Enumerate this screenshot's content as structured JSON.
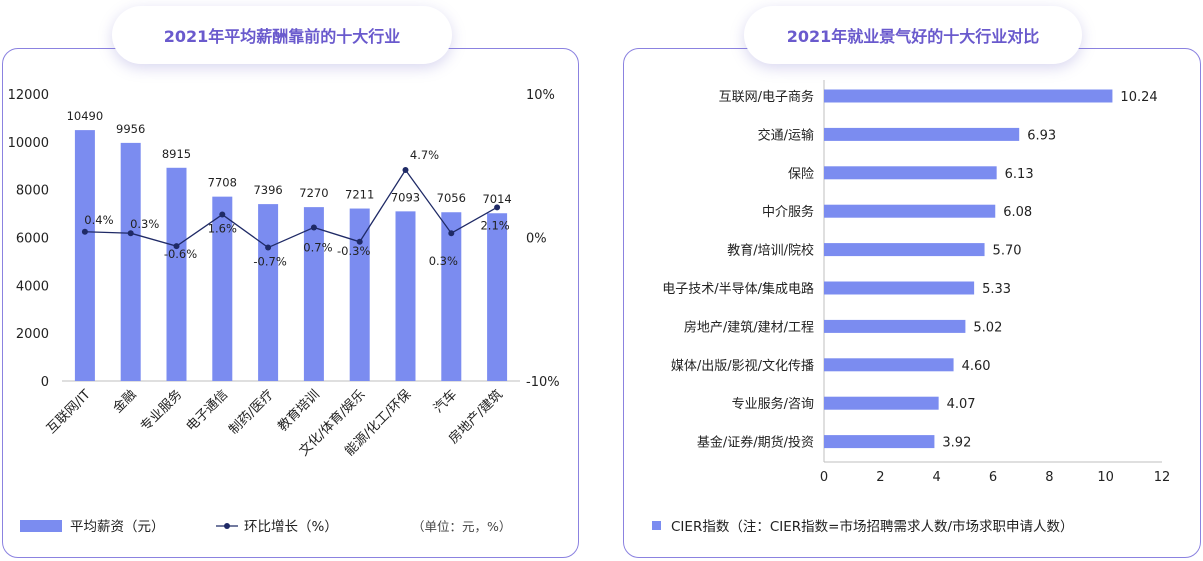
{
  "left": {
    "title": "2021年平均薪酬靠前的十大行业",
    "legend": {
      "bar": "平均薪资（元）",
      "line": "环比增长（%）",
      "unit": "（单位：元，%）"
    },
    "chart_data": {
      "type": "bar",
      "categories": [
        "互联网/IT",
        "金融",
        "专业服务",
        "电子通信",
        "制药/医疗",
        "教育培训",
        "文化/体育/娱乐",
        "能源/化工/环保",
        "汽车",
        "房地产/建筑"
      ],
      "series": [
        {
          "name": "平均薪资（元）",
          "values": [
            10490,
            9956,
            8915,
            7708,
            7396,
            7270,
            7211,
            7093,
            7056,
            7014
          ],
          "labels": [
            "10490",
            "9956",
            "8915",
            "7708",
            "7396",
            "7270",
            "7211",
            "7093",
            "7056",
            "7014"
          ]
        },
        {
          "name": "环比增长（%）",
          "values": [
            0.4,
            0.3,
            -0.6,
            1.6,
            -0.7,
            0.7,
            -0.3,
            4.7,
            0.3,
            2.1
          ],
          "labels": [
            "0.4%",
            "0.3%",
            "-0.6%",
            "1.6%",
            "-0.7%",
            "0.7%",
            "-0.3%",
            "4.7%",
            "0.3%",
            "2.1%"
          ]
        }
      ],
      "ylim": [
        0,
        12000
      ],
      "yticks": [
        "0",
        "2000",
        "4000",
        "6000",
        "8000",
        "10000",
        "12000"
      ],
      "y2lim": [
        -10,
        10
      ],
      "y2ticks": [
        "-10%",
        "0%",
        "10%"
      ],
      "colors": {
        "bar": "#7b8cf0",
        "line": "#1f2a66"
      }
    }
  },
  "right": {
    "title": "2021年就业景气好的十大行业对比",
    "legend": "CIER指数（注：CIER指数=市场招聘需求人数/市场求职申请人数）",
    "chart_data": {
      "type": "bar",
      "orientation": "horizontal",
      "categories": [
        "互联网/电子商务",
        "交通/运输",
        "保险",
        "中介服务",
        "教育/培训/院校",
        "电子技术/半导体/集成电路",
        "房地产/建筑/建材/工程",
        "媒体/出版/影视/文化传播",
        "专业服务/咨询",
        "基金/证券/期货/投资"
      ],
      "values": [
        10.24,
        6.93,
        6.13,
        6.08,
        5.7,
        5.33,
        5.02,
        4.6,
        4.07,
        3.92
      ],
      "labels": [
        "10.24",
        "6.93",
        "6.13",
        "6.08",
        "5.70",
        "5.33",
        "5.02",
        "4.60",
        "4.07",
        "3.92"
      ],
      "xlim": [
        0,
        12
      ],
      "xticks": [
        "0",
        "2",
        "4",
        "6",
        "8",
        "10",
        "12"
      ],
      "colors": {
        "bar": "#7b8cf0"
      }
    }
  }
}
